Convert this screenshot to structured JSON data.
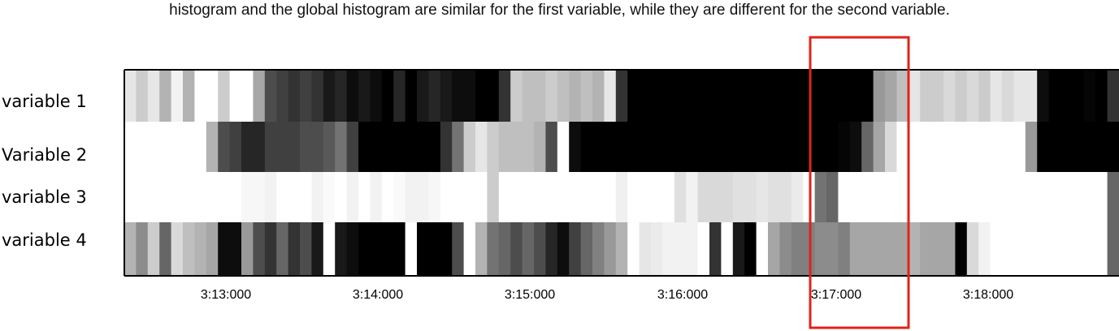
{
  "caption": "histogram and the global histogram are similar for the first variable, while they are different for the second variable.",
  "chart_data": {
    "type": "heatmap",
    "title": "",
    "xlabel": "",
    "ylabel": "",
    "rows": [
      "variable 1",
      "Variable 2",
      "variable 3",
      "variable 4"
    ],
    "x_ticks": [
      "3:13:000",
      "3:14:000",
      "3:15:000",
      "3:16:000",
      "3:17:000",
      "3:18:000"
    ],
    "colormap": "grayscale, 0 = white, 1 = black",
    "cells": [
      [
        0.1,
        0.2,
        0.1,
        0.3,
        0.05,
        0.3,
        0.0,
        0.0,
        0.2,
        0.0,
        0.0,
        0.35,
        0.7,
        0.75,
        0.8,
        0.75,
        0.8,
        0.9,
        0.85,
        0.95,
        0.9,
        0.95,
        1.0,
        0.85,
        1.0,
        0.9,
        0.85,
        0.9,
        0.95,
        0.95,
        1.0,
        1.0,
        0.8,
        0.2,
        0.25,
        0.25,
        0.2,
        0.25,
        0.3,
        0.25,
        0.3,
        0.1,
        0.8,
        1.0,
        1.0,
        1.0,
        1.0,
        1.0,
        1.0,
        1.0,
        1.0,
        1.0,
        1.0,
        1.0,
        1.0,
        1.0,
        1.0,
        1.0,
        1.0,
        1.0,
        1.0,
        1.0,
        1.0,
        1.0,
        0.4,
        0.35,
        0.25,
        0.1,
        0.2,
        0.2,
        0.15,
        0.2,
        0.15,
        0.2,
        0.1,
        0.15,
        0.1,
        0.1,
        0.95,
        1.0,
        1.0,
        1.0,
        0.98,
        1.0,
        0.8
      ],
      [
        0.0,
        0.0,
        0.0,
        0.0,
        0.0,
        0.0,
        0.0,
        0.3,
        0.7,
        0.75,
        0.85,
        0.85,
        0.75,
        0.75,
        0.75,
        0.7,
        0.7,
        0.65,
        0.55,
        0.75,
        1.0,
        1.0,
        1.0,
        1.0,
        1.0,
        1.0,
        1.0,
        0.8,
        0.55,
        0.2,
        0.1,
        0.2,
        0.25,
        0.25,
        0.25,
        0.3,
        0.7,
        0.0,
        0.95,
        1.0,
        1.0,
        1.0,
        1.0,
        1.0,
        1.0,
        1.0,
        1.0,
        1.0,
        1.0,
        1.0,
        1.0,
        1.0,
        1.0,
        1.0,
        1.0,
        1.0,
        1.0,
        1.0,
        1.0,
        1.0,
        1.0,
        0.98,
        0.95,
        0.6,
        0.35,
        0.15,
        0.0,
        0.0,
        0.0,
        0.0,
        0.0,
        0.0,
        0.0,
        0.0,
        0.0,
        0.0,
        0.0,
        0.4,
        1.0,
        1.0,
        1.0,
        1.0,
        1.0,
        1.0,
        1.0
      ],
      [
        0.0,
        0.0,
        0.0,
        0.0,
        0.0,
        0.0,
        0.0,
        0.0,
        0.0,
        0.0,
        0.03,
        0.03,
        0.05,
        0.0,
        0.0,
        0.0,
        0.05,
        0.02,
        0.0,
        0.05,
        0.0,
        0.05,
        0.0,
        0.02,
        0.05,
        0.05,
        0.03,
        0.0,
        0.0,
        0.0,
        0.0,
        0.2,
        0.0,
        0.0,
        0.0,
        0.0,
        0.0,
        0.0,
        0.0,
        0.0,
        0.0,
        0.0,
        0.06,
        0.0,
        0.0,
        0.0,
        0.0,
        0.12,
        0.05,
        0.15,
        0.15,
        0.15,
        0.12,
        0.12,
        0.1,
        0.12,
        0.12,
        0.08,
        0.0,
        0.55,
        0.6,
        0.0,
        0.0,
        0.0,
        0.0,
        0.0,
        0.0,
        0.0,
        0.0,
        0.0,
        0.0,
        0.0,
        0.0,
        0.0,
        0.0,
        0.0,
        0.0,
        0.0,
        0.0,
        0.0,
        0.0,
        0.0,
        0.0,
        0.0,
        0.6
      ],
      [
        0.3,
        0.45,
        0.2,
        0.6,
        0.15,
        0.25,
        0.3,
        0.35,
        0.95,
        0.95,
        0.4,
        0.7,
        0.8,
        0.6,
        0.8,
        0.7,
        0.9,
        0.0,
        0.9,
        0.95,
        1.0,
        1.0,
        1.0,
        1.0,
        0.0,
        1.0,
        1.0,
        1.0,
        0.7,
        0.0,
        0.3,
        0.55,
        0.6,
        0.7,
        0.6,
        0.7,
        0.85,
        0.95,
        0.75,
        0.6,
        0.5,
        0.4,
        0.3,
        0.0,
        0.1,
        0.08,
        0.05,
        0.05,
        0.05,
        0.0,
        0.8,
        0.0,
        0.9,
        1.0,
        0.0,
        0.35,
        0.45,
        0.5,
        0.5,
        0.45,
        0.45,
        0.5,
        0.35,
        0.35,
        0.35,
        0.35,
        0.35,
        0.3,
        0.35,
        0.35,
        0.35,
        1.0,
        0.15,
        0.05,
        0.0,
        0.0,
        0.0,
        0.0,
        0.0,
        0.0,
        0.0,
        0.0,
        0.0,
        0.0,
        0.6
      ]
    ],
    "highlight": {
      "shape": "red rectangle",
      "around": "3:17:000",
      "color": "#e2231a"
    },
    "grid": false,
    "legend": "none"
  },
  "colors": {
    "highlight": "#e2231a",
    "frame": "#000000"
  }
}
